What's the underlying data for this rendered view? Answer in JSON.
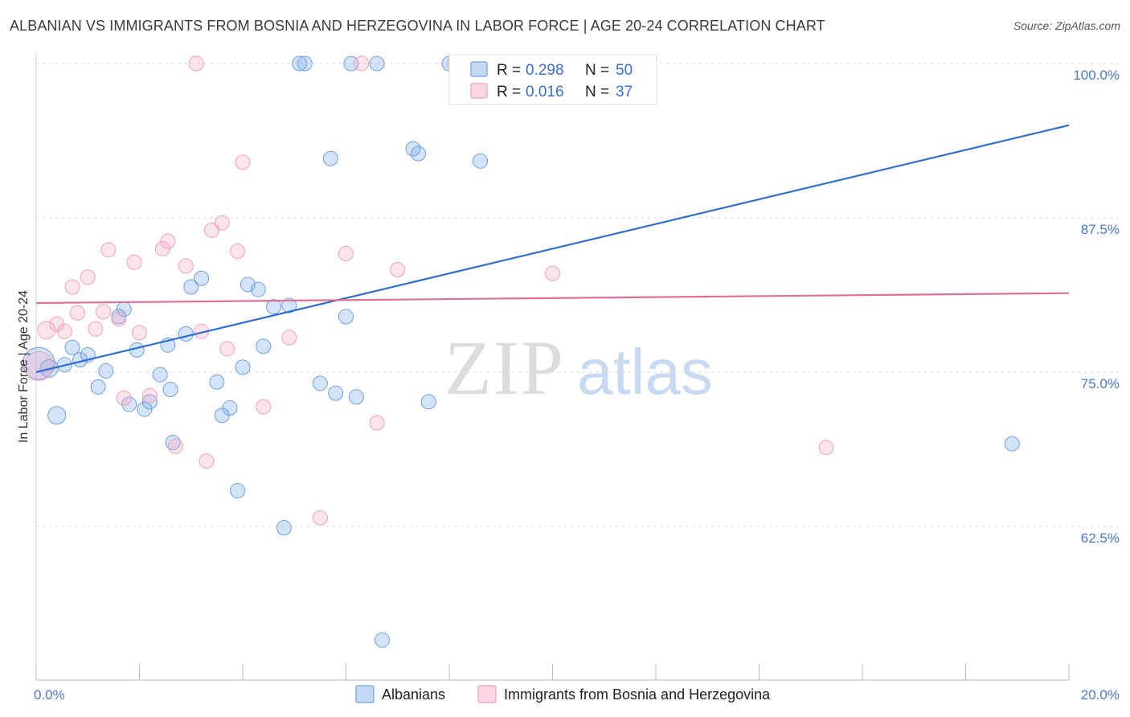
{
  "title": "ALBANIAN VS IMMIGRANTS FROM BOSNIA AND HERZEGOVINA IN LABOR FORCE | AGE 20-24 CORRELATION CHART",
  "source": "Source: ZipAtlas.com",
  "watermark": {
    "zip": "ZIP",
    "atlas": "atlas"
  },
  "chart_data": {
    "type": "scatter",
    "ylabel": "In Labor Force | Age 20-24",
    "xlim": [
      0,
      20
    ],
    "ylim": [
      52,
      100
    ],
    "y_ticks": [
      {
        "value": 100,
        "label": "100.0%"
      },
      {
        "value": 87.5,
        "label": "87.5%"
      },
      {
        "value": 75,
        "label": "75.0%"
      },
      {
        "value": 62.5,
        "label": "62.5%"
      }
    ],
    "x_tick_labels": [
      {
        "value": 0,
        "label": "0.0%"
      },
      {
        "value": 20,
        "label": "20.0%"
      }
    ],
    "grid": "horizontal dashed",
    "legend": {
      "placement": "top-center",
      "rows": [
        {
          "r_label": "R =",
          "r": "0.298",
          "n_label": "N =",
          "n": "50",
          "color": "#7aaae8"
        },
        {
          "r_label": "R =",
          "r": "0.016",
          "n_label": "N =",
          "n": "37",
          "color": "#f4a7bf"
        }
      ]
    },
    "series": [
      {
        "name": "Albanians",
        "color": "#7aaae8",
        "trend": {
          "x": [
            0,
            20
          ],
          "y": [
            75.0,
            95.0
          ],
          "color": "#2f6fd0"
        },
        "points": [
          [
            0.05,
            75.7,
            20
          ],
          [
            0.25,
            75.3,
            11
          ],
          [
            0.4,
            71.5,
            11
          ],
          [
            0.55,
            75.6,
            9
          ],
          [
            0.7,
            77.0,
            9
          ],
          [
            0.85,
            76.0,
            9
          ],
          [
            1.0,
            76.4,
            9
          ],
          [
            1.2,
            73.8,
            9
          ],
          [
            1.35,
            75.1,
            9
          ],
          [
            1.6,
            79.5,
            9
          ],
          [
            1.7,
            80.1,
            9
          ],
          [
            1.8,
            72.4,
            9
          ],
          [
            1.95,
            76.8,
            9
          ],
          [
            2.1,
            72.0,
            9
          ],
          [
            2.2,
            72.6,
            9
          ],
          [
            2.4,
            74.8,
            9
          ],
          [
            2.55,
            77.2,
            9
          ],
          [
            2.6,
            73.6,
            9
          ],
          [
            2.65,
            69.3,
            9
          ],
          [
            2.9,
            78.1,
            9
          ],
          [
            3.0,
            81.9,
            9
          ],
          [
            3.2,
            82.6,
            9
          ],
          [
            3.5,
            74.2,
            9
          ],
          [
            3.6,
            71.5,
            9
          ],
          [
            3.75,
            72.1,
            9
          ],
          [
            3.9,
            65.4,
            9
          ],
          [
            4.0,
            75.4,
            9
          ],
          [
            4.1,
            82.1,
            9
          ],
          [
            4.3,
            81.7,
            9
          ],
          [
            4.4,
            77.1,
            9
          ],
          [
            4.6,
            80.3,
            9
          ],
          [
            4.8,
            62.4,
            9
          ],
          [
            4.9,
            80.4,
            9
          ],
          [
            5.1,
            100.0,
            9
          ],
          [
            5.2,
            100.0,
            9
          ],
          [
            5.5,
            74.1,
            9
          ],
          [
            5.7,
            92.3,
            9
          ],
          [
            5.8,
            73.3,
            9
          ],
          [
            6.0,
            79.5,
            9
          ],
          [
            6.1,
            100.0,
            9
          ],
          [
            6.2,
            73.0,
            9
          ],
          [
            6.6,
            100.0,
            9
          ],
          [
            6.7,
            53.3,
            9
          ],
          [
            7.3,
            93.1,
            9
          ],
          [
            7.4,
            92.7,
            9
          ],
          [
            7.6,
            72.6,
            9
          ],
          [
            8.0,
            100.0,
            9
          ],
          [
            8.3,
            100.0,
            9
          ],
          [
            8.6,
            92.1,
            9
          ],
          [
            18.9,
            69.2,
            9
          ]
        ]
      },
      {
        "name": "Immigrants from Bosnia and Herzegovina",
        "color": "#f4a7bf",
        "trend": {
          "x": [
            0,
            20
          ],
          "y": [
            80.6,
            81.4
          ],
          "color": "#e06f97"
        },
        "points": [
          [
            0.05,
            75.5,
            18
          ],
          [
            0.2,
            78.4,
            11
          ],
          [
            0.4,
            78.9,
            9
          ],
          [
            0.55,
            78.3,
            9
          ],
          [
            0.7,
            81.9,
            9
          ],
          [
            0.8,
            79.8,
            9
          ],
          [
            1.0,
            82.7,
            9
          ],
          [
            1.15,
            78.5,
            9
          ],
          [
            1.3,
            79.9,
            9
          ],
          [
            1.4,
            84.9,
            9
          ],
          [
            1.6,
            79.3,
            9
          ],
          [
            1.7,
            72.9,
            9
          ],
          [
            1.9,
            83.9,
            9
          ],
          [
            2.0,
            78.2,
            9
          ],
          [
            2.2,
            73.1,
            9
          ],
          [
            2.45,
            85.0,
            9
          ],
          [
            2.55,
            85.6,
            9
          ],
          [
            2.7,
            69.0,
            9
          ],
          [
            2.9,
            83.6,
            9
          ],
          [
            3.1,
            100.0,
            9
          ],
          [
            3.2,
            78.3,
            9
          ],
          [
            3.3,
            67.8,
            9
          ],
          [
            3.4,
            86.5,
            9
          ],
          [
            3.6,
            87.1,
            9
          ],
          [
            3.7,
            76.9,
            9
          ],
          [
            3.9,
            84.8,
            9
          ],
          [
            4.0,
            92.0,
            9
          ],
          [
            4.4,
            72.2,
            9
          ],
          [
            4.9,
            77.8,
            9
          ],
          [
            5.5,
            63.2,
            9
          ],
          [
            6.0,
            84.6,
            9
          ],
          [
            6.3,
            100.0,
            9
          ],
          [
            6.6,
            70.9,
            9
          ],
          [
            7.0,
            83.3,
            9
          ],
          [
            8.1,
            100.0,
            9
          ],
          [
            10.0,
            83.0,
            9
          ],
          [
            15.3,
            68.9,
            9
          ]
        ]
      }
    ]
  },
  "bottom_legend": [
    {
      "label": "Albanians",
      "color": "#7aaae8"
    },
    {
      "label": "Immigrants from Bosnia and Herzegovina",
      "color": "#f4a7bf"
    }
  ]
}
